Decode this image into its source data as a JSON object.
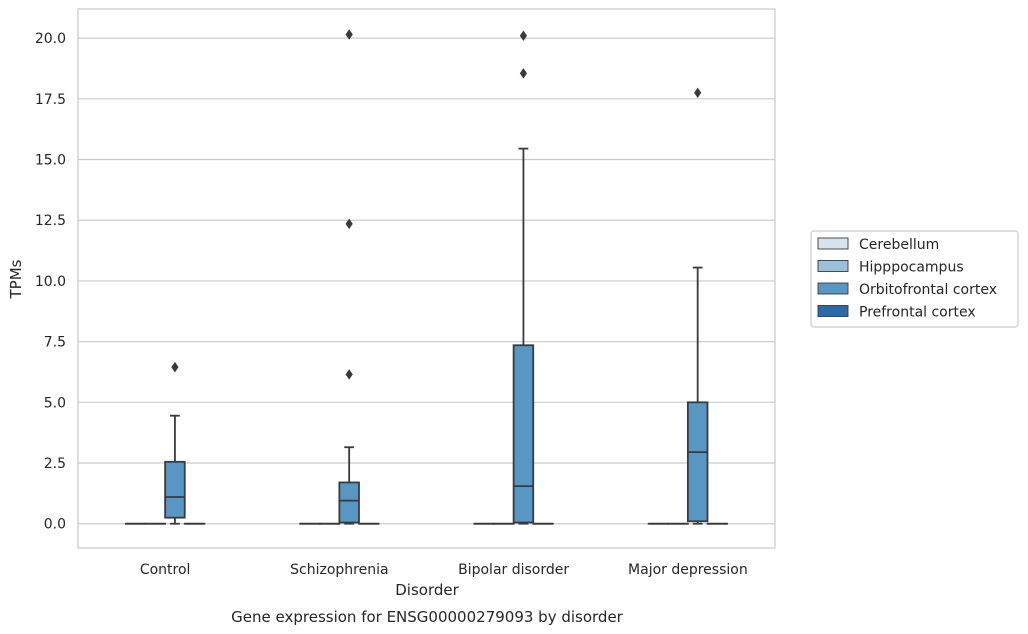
{
  "chart_data": {
    "type": "box",
    "caption": "Gene expression for ENSG00000279093 by disorder",
    "xlabel": "Disorder",
    "ylabel": "TPMs",
    "ylim": [
      -1,
      21.2
    ],
    "yticks": [
      0.0,
      2.5,
      5.0,
      7.5,
      10.0,
      12.5,
      15.0,
      17.5,
      20.0
    ],
    "ytick_labels": [
      "0.0",
      "2.5",
      "5.0",
      "7.5",
      "10.0",
      "12.5",
      "15.0",
      "17.5",
      "20.0"
    ],
    "grid": "horizontal",
    "legend_position": "right",
    "categories": [
      "Control",
      "Schizophrenia",
      "Bipolar disorder",
      "Major depression"
    ],
    "series": [
      {
        "name": "Cerebellum",
        "color": "#d7e4f0",
        "boxes": [
          {
            "whislo": 0,
            "q1": 0,
            "med": 0,
            "q3": 0,
            "whishi": 0,
            "fliers": []
          },
          {
            "whislo": 0,
            "q1": 0,
            "med": 0,
            "q3": 0,
            "whishi": 0,
            "fliers": []
          },
          {
            "whislo": 0,
            "q1": 0,
            "med": 0,
            "q3": 0,
            "whishi": 0,
            "fliers": []
          },
          {
            "whislo": 0,
            "q1": 0,
            "med": 0,
            "q3": 0,
            "whishi": 0,
            "fliers": []
          }
        ]
      },
      {
        "name": "Hipppocampus",
        "color": "#9ac0db",
        "boxes": [
          {
            "whislo": 0,
            "q1": 0,
            "med": 0,
            "q3": 0,
            "whishi": 0,
            "fliers": []
          },
          {
            "whislo": 0,
            "q1": 0,
            "med": 0,
            "q3": 0,
            "whishi": 0,
            "fliers": []
          },
          {
            "whislo": 0,
            "q1": 0,
            "med": 0,
            "q3": 0,
            "whishi": 0,
            "fliers": []
          },
          {
            "whislo": 0,
            "q1": 0,
            "med": 0,
            "q3": 0,
            "whishi": 0,
            "fliers": []
          }
        ]
      },
      {
        "name": "Orbitofrontal cortex",
        "color": "#5896c4",
        "boxes": [
          {
            "whislo": 0,
            "q1": 0.25,
            "med": 1.1,
            "q3": 2.55,
            "whishi": 4.45,
            "fliers": [
              6.45
            ]
          },
          {
            "whislo": 0,
            "q1": 0.05,
            "med": 0.95,
            "q3": 1.7,
            "whishi": 3.15,
            "fliers": [
              6.15,
              12.35,
              20.15
            ]
          },
          {
            "whislo": 0,
            "q1": 0.05,
            "med": 1.55,
            "q3": 7.35,
            "whishi": 15.45,
            "fliers": [
              18.55,
              20.1
            ]
          },
          {
            "whislo": 0,
            "q1": 0.1,
            "med": 2.95,
            "q3": 5.0,
            "whishi": 10.55,
            "fliers": [
              17.75
            ]
          }
        ]
      },
      {
        "name": "Prefrontal cortex",
        "color": "#2c6aa7",
        "boxes": [
          {
            "whislo": 0,
            "q1": 0,
            "med": 0,
            "q3": 0,
            "whishi": 0,
            "fliers": []
          },
          {
            "whislo": 0,
            "q1": 0,
            "med": 0,
            "q3": 0,
            "whishi": 0,
            "fliers": []
          },
          {
            "whislo": 0,
            "q1": 0,
            "med": 0,
            "q3": 0,
            "whishi": 0,
            "fliers": []
          },
          {
            "whislo": 0,
            "q1": 0,
            "med": 0,
            "q3": 0,
            "whishi": 0,
            "fliers": []
          }
        ]
      }
    ],
    "colors": {
      "grid": "#cccccc",
      "frame": "#cccccc",
      "line": "#3a3a3a"
    }
  }
}
